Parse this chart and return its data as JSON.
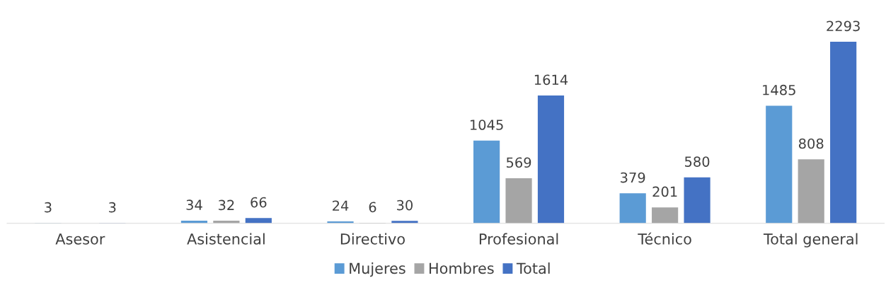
{
  "chart_data": {
    "type": "bar",
    "categories": [
      "Asesor",
      "Asistencial",
      "Directivo",
      "Profesional",
      "Técnico",
      "Total general"
    ],
    "series": [
      {
        "name": "Mujeres",
        "color": "#5b9bd5",
        "values": [
          3,
          34,
          24,
          1045,
          379,
          1485
        ]
      },
      {
        "name": "Hombres",
        "color": "#a5a5a5",
        "values": [
          null,
          32,
          6,
          569,
          201,
          808
        ]
      },
      {
        "name": "Total",
        "color": "#4472c4",
        "values": [
          3,
          66,
          30,
          1614,
          580,
          2293
        ]
      }
    ],
    "data_labels": true,
    "legend": "bottom",
    "grid": false
  }
}
